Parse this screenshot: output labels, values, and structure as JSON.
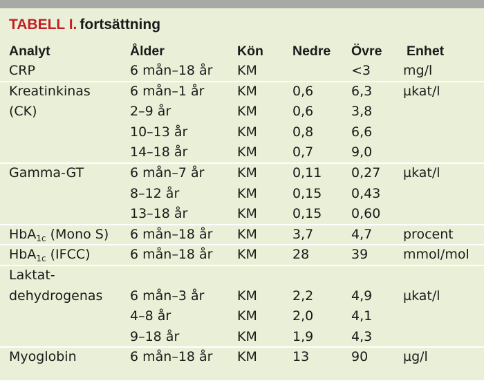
{
  "title": {
    "label": "TABELL I.",
    "subtitle": "fortsättning"
  },
  "columns": [
    "Analyt",
    "Ålder",
    "Kön",
    "Nedre",
    "Övre",
    "Enhet"
  ],
  "rows": [
    {
      "analyt": "CRP",
      "alder": "6 mån–18 år",
      "kon": "KM",
      "nedre": "",
      "ovre": "<3",
      "enhet": "mg/l"
    },
    {
      "analyt": "Kreatinkinas",
      "alder": "6 mån–1 år",
      "kon": "KM",
      "nedre": "0,6",
      "ovre": "6,3",
      "enhet": "µkat/l"
    },
    {
      "analyt": "(CK)",
      "alder": "2–9 år",
      "kon": "KM",
      "nedre": "0,6",
      "ovre": "3,8",
      "enhet": ""
    },
    {
      "analyt": "",
      "alder": "10–13 år",
      "kon": "KM",
      "nedre": "0,8",
      "ovre": "6,6",
      "enhet": ""
    },
    {
      "analyt": "",
      "alder": "14–18 år",
      "kon": "KM",
      "nedre": "0,7",
      "ovre": "9,0",
      "enhet": ""
    },
    {
      "analyt": "Gamma-GT",
      "alder": "6 mån–7 år",
      "kon": "KM",
      "nedre": "0,11",
      "ovre": "0,27",
      "enhet": "µkat/l"
    },
    {
      "analyt": "",
      "alder": "8–12 år",
      "kon": "KM",
      "nedre": "0,15",
      "ovre": "0,43",
      "enhet": ""
    },
    {
      "analyt": "",
      "alder": "13–18 år",
      "kon": "KM",
      "nedre": "0,15",
      "ovre": "0,60",
      "enhet": ""
    },
    {
      "analyt_main": "HbA",
      "analyt_sub": "1c",
      "analyt_suffix": " (Mono S)",
      "alder": "6 mån–18 år",
      "kon": "KM",
      "nedre": "3,7",
      "ovre": "4,7",
      "enhet": "procent"
    },
    {
      "analyt_main": "HbA",
      "analyt_sub": "1c",
      "analyt_suffix": " (IFCC)",
      "alder": "6 mån–18 år",
      "kon": "KM",
      "nedre": "28",
      "ovre": "39",
      "enhet": "mmol/mol"
    },
    {
      "analyt": "Laktat-",
      "alder": "",
      "kon": "",
      "nedre": "",
      "ovre": "",
      "enhet": ""
    },
    {
      "analyt": "dehydrogenas",
      "alder": "6 mån–3 år",
      "kon": "KM",
      "nedre": "2,2",
      "ovre": "4,9",
      "enhet": "µkat/l"
    },
    {
      "analyt": "",
      "alder": "4–8 år",
      "kon": "KM",
      "nedre": "2,0",
      "ovre": "4,1",
      "enhet": ""
    },
    {
      "analyt": "",
      "alder": "9–18 år",
      "kon": "KM",
      "nedre": "1,9",
      "ovre": "4,3",
      "enhet": ""
    },
    {
      "analyt": "Myoglobin",
      "alder": "6 mån–18 år",
      "kon": "KM",
      "nedre": "13",
      "ovre": "90",
      "enhet": "µg/l"
    }
  ],
  "colors": {
    "background": "#eaf0d7",
    "top_bar": "#a8a8a6",
    "title_label": "#c41e25",
    "separator": "#ffffff"
  }
}
